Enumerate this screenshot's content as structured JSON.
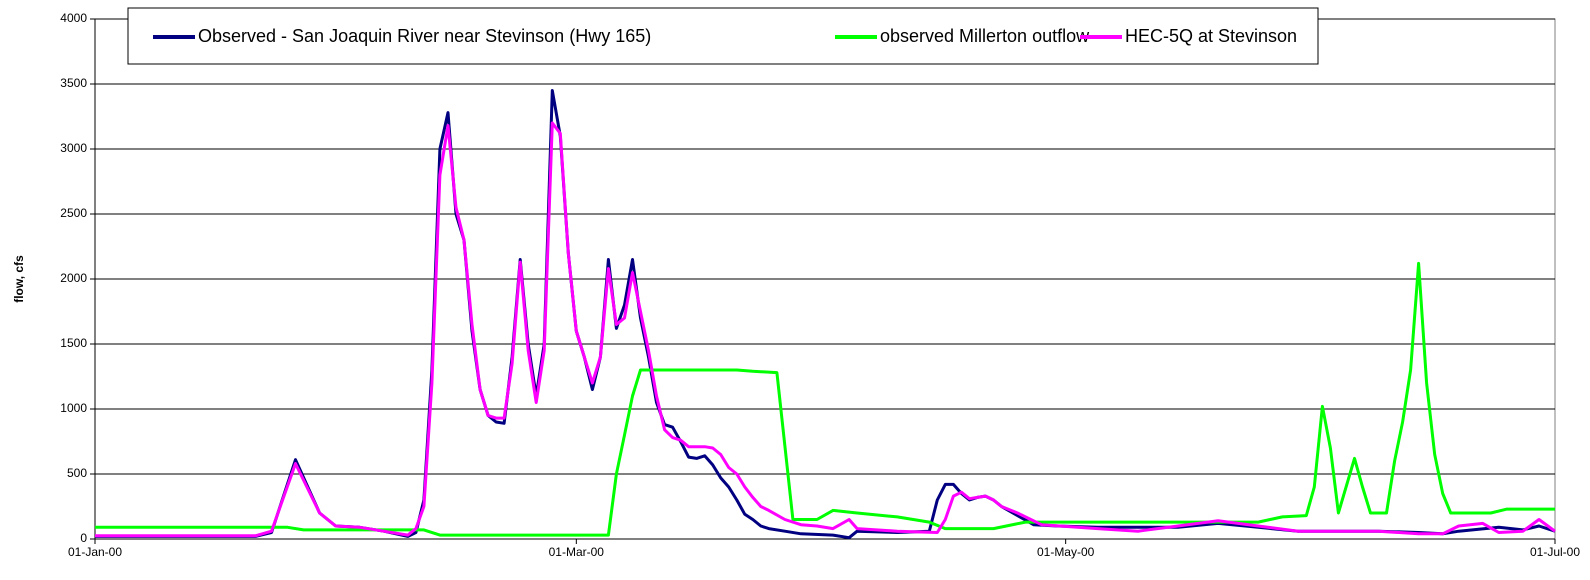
{
  "chart_data": {
    "type": "line",
    "ylabel": "flow, cfs",
    "xlim": [
      "2000-01-01",
      "2000-07-01"
    ],
    "xticks": [
      {
        "value": "2000-01-01",
        "label": "01-Jan-00"
      },
      {
        "value": "2000-03-01",
        "label": "01-Mar-00"
      },
      {
        "value": "2000-05-01",
        "label": "01-May-00"
      },
      {
        "value": "2000-07-01",
        "label": "01-Jul-00"
      }
    ],
    "ylim": [
      0,
      4000
    ],
    "yticks": [
      0,
      500,
      1000,
      1500,
      2000,
      2500,
      3000,
      3500,
      4000
    ],
    "grid": true,
    "legend": "top",
    "series": [
      {
        "name": "Observed - San Joaquin River near Stevinson (Hwy 165)",
        "color": "#000080",
        "x": [
          "2000-01-01",
          "2000-01-21",
          "2000-01-23",
          "2000-01-26",
          "2000-01-29",
          "2000-01-31",
          "2000-02-03",
          "2000-02-06",
          "2000-02-09",
          "2000-02-10",
          "2000-02-11",
          "2000-02-12",
          "2000-02-13",
          "2000-02-14",
          "2000-02-15",
          "2000-02-16",
          "2000-02-17",
          "2000-02-18",
          "2000-02-19",
          "2000-02-20",
          "2000-02-21",
          "2000-02-22",
          "2000-02-23",
          "2000-02-24",
          "2000-02-25",
          "2000-02-26",
          "2000-02-27",
          "2000-02-28",
          "2000-02-29",
          "2000-03-01",
          "2000-03-02",
          "2000-03-03",
          "2000-03-04",
          "2000-03-05",
          "2000-03-06",
          "2000-03-07",
          "2000-03-08",
          "2000-03-09",
          "2000-03-10",
          "2000-03-11",
          "2000-03-12",
          "2000-03-13",
          "2000-03-14",
          "2000-03-15",
          "2000-03-16",
          "2000-03-17",
          "2000-03-18",
          "2000-03-19",
          "2000-03-20",
          "2000-03-21",
          "2000-03-22",
          "2000-03-23",
          "2000-03-24",
          "2000-03-25",
          "2000-03-27",
          "2000-03-29",
          "2000-04-02",
          "2000-04-04",
          "2000-04-05",
          "2000-04-10",
          "2000-04-14",
          "2000-04-15",
          "2000-04-16",
          "2000-04-17",
          "2000-04-18",
          "2000-04-19",
          "2000-04-20",
          "2000-04-21",
          "2000-04-22",
          "2000-04-23",
          "2000-04-25",
          "2000-04-27",
          "2000-04-30",
          "2000-05-05",
          "2000-05-10",
          "2000-05-15",
          "2000-05-20",
          "2000-05-25",
          "2000-05-30",
          "2000-06-04",
          "2000-06-09",
          "2000-06-14",
          "2000-06-17",
          "2000-06-19",
          "2000-06-24",
          "2000-06-27",
          "2000-06-29",
          "2000-07-01"
        ],
        "values": [
          20,
          20,
          50,
          610,
          200,
          100,
          90,
          60,
          20,
          50,
          300,
          1300,
          3000,
          3280,
          2500,
          2300,
          1600,
          1150,
          950,
          900,
          890,
          1400,
          2150,
          1500,
          1100,
          1500,
          3450,
          3100,
          2200,
          1600,
          1400,
          1150,
          1400,
          2150,
          1620,
          1800,
          2150,
          1700,
          1400,
          1050,
          880,
          860,
          750,
          630,
          620,
          640,
          570,
          470,
          400,
          300,
          190,
          150,
          100,
          80,
          60,
          40,
          30,
          10,
          60,
          50,
          60,
          300,
          420,
          420,
          350,
          300,
          320,
          330,
          300,
          250,
          180,
          110,
          100,
          90,
          90,
          90,
          120,
          90,
          60,
          60,
          60,
          50,
          40,
          60,
          90,
          70,
          100,
          60
        ]
      },
      {
        "name": "observed Millerton outflow",
        "color": "#00ff00",
        "x": [
          "2000-01-01",
          "2000-01-25",
          "2000-01-27",
          "2000-02-11",
          "2000-02-13",
          "2000-03-05",
          "2000-03-06",
          "2000-03-07",
          "2000-03-08",
          "2000-03-09",
          "2000-03-21",
          "2000-03-23",
          "2000-03-26",
          "2000-03-28",
          "2000-03-31",
          "2000-04-02",
          "2000-04-05",
          "2000-04-10",
          "2000-04-14",
          "2000-04-16",
          "2000-04-22",
          "2000-04-26",
          "2000-05-25",
          "2000-05-28",
          "2000-05-31",
          "2000-06-01",
          "2000-06-02",
          "2000-06-03",
          "2000-06-04",
          "2000-06-06",
          "2000-06-07",
          "2000-06-08",
          "2000-06-10",
          "2000-06-11",
          "2000-06-12",
          "2000-06-13",
          "2000-06-14",
          "2000-06-15",
          "2000-06-16",
          "2000-06-17",
          "2000-06-18",
          "2000-06-23",
          "2000-06-25",
          "2000-07-01"
        ],
        "values": [
          90,
          90,
          70,
          70,
          30,
          30,
          500,
          800,
          1100,
          1300,
          1300,
          1290,
          1280,
          150,
          150,
          220,
          200,
          170,
          130,
          80,
          80,
          130,
          130,
          170,
          180,
          400,
          1020,
          700,
          200,
          620,
          400,
          200,
          200,
          600,
          900,
          1300,
          2120,
          1200,
          650,
          350,
          200,
          200,
          230,
          230
        ]
      },
      {
        "name": "HEC-5Q at Stevinson",
        "color": "#ff00ff",
        "x": [
          "2000-01-01",
          "2000-01-21",
          "2000-01-23",
          "2000-01-26",
          "2000-01-29",
          "2000-01-31",
          "2000-02-03",
          "2000-02-06",
          "2000-02-09",
          "2000-02-10",
          "2000-02-11",
          "2000-02-12",
          "2000-02-13",
          "2000-02-14",
          "2000-02-15",
          "2000-02-16",
          "2000-02-17",
          "2000-02-18",
          "2000-02-19",
          "2000-02-20",
          "2000-02-21",
          "2000-02-22",
          "2000-02-23",
          "2000-02-24",
          "2000-02-25",
          "2000-02-26",
          "2000-02-27",
          "2000-02-28",
          "2000-02-29",
          "2000-03-01",
          "2000-03-02",
          "2000-03-03",
          "2000-03-04",
          "2000-03-05",
          "2000-03-06",
          "2000-03-07",
          "2000-03-08",
          "2000-03-09",
          "2000-03-10",
          "2000-03-11",
          "2000-03-12",
          "2000-03-13",
          "2000-03-14",
          "2000-03-15",
          "2000-03-17",
          "2000-03-18",
          "2000-03-19",
          "2000-03-20",
          "2000-03-21",
          "2000-03-22",
          "2000-03-23",
          "2000-03-24",
          "2000-03-25",
          "2000-03-27",
          "2000-03-29",
          "2000-03-31",
          "2000-04-02",
          "2000-04-04",
          "2000-04-05",
          "2000-04-10",
          "2000-04-15",
          "2000-04-16",
          "2000-04-17",
          "2000-04-18",
          "2000-04-19",
          "2000-04-20",
          "2000-04-21",
          "2000-04-22",
          "2000-04-23",
          "2000-04-25",
          "2000-04-28",
          "2000-05-05",
          "2000-05-10",
          "2000-05-15",
          "2000-05-20",
          "2000-05-25",
          "2000-05-30",
          "2000-06-04",
          "2000-06-09",
          "2000-06-14",
          "2000-06-17",
          "2000-06-19",
          "2000-06-22",
          "2000-06-24",
          "2000-06-27",
          "2000-06-29",
          "2000-07-01"
        ],
        "values": [
          25,
          25,
          60,
          580,
          200,
          100,
          90,
          60,
          30,
          80,
          250,
          1200,
          2800,
          3180,
          2550,
          2300,
          1650,
          1150,
          950,
          930,
          930,
          1350,
          2130,
          1450,
          1050,
          1450,
          3200,
          3120,
          2200,
          1600,
          1400,
          1200,
          1400,
          2080,
          1650,
          1700,
          2050,
          1750,
          1450,
          1100,
          840,
          780,
          760,
          710,
          710,
          700,
          650,
          550,
          500,
          400,
          320,
          250,
          220,
          150,
          110,
          100,
          80,
          150,
          80,
          60,
          50,
          150,
          330,
          360,
          310,
          320,
          330,
          300,
          250,
          200,
          110,
          80,
          60,
          100,
          140,
          100,
          60,
          60,
          60,
          40,
          40,
          100,
          120,
          50,
          60,
          150,
          60
        ]
      }
    ]
  }
}
